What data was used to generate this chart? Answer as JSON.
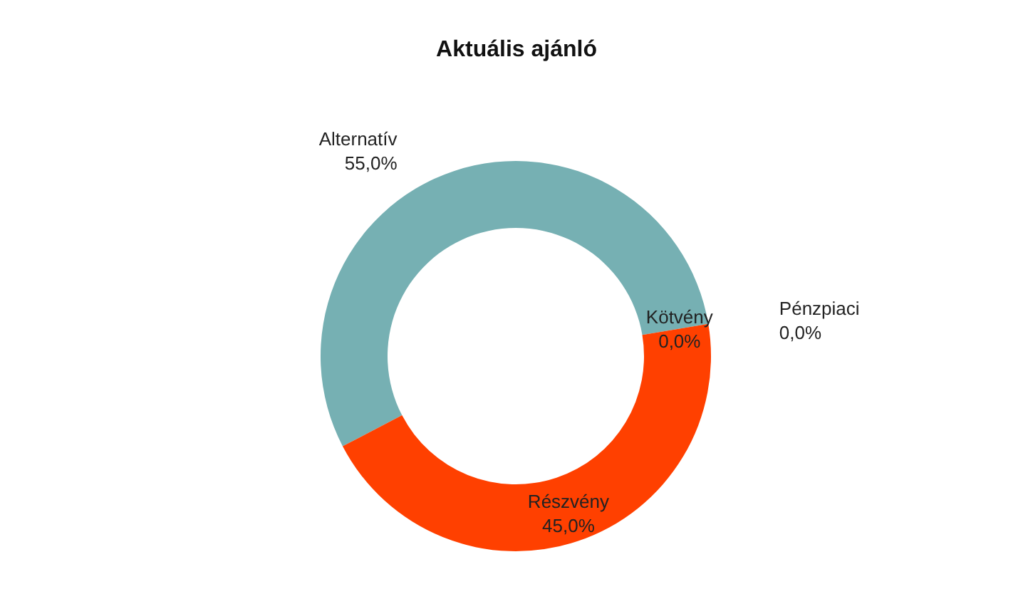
{
  "chart_data": {
    "type": "donut",
    "title": "Aktuális ajánló",
    "categories": [
      "Alternatív",
      "Kötvény",
      "Pénzpiaci",
      "Részvény"
    ],
    "values": [
      55,
      0,
      0,
      45
    ],
    "colors": [
      "#76b0b3",
      "#2f4b7c",
      "#f2b134",
      "#ff4000"
    ],
    "value_labels": [
      "55,0%",
      "0,0%",
      "0,0%",
      "45,0%"
    ],
    "legend": false
  }
}
